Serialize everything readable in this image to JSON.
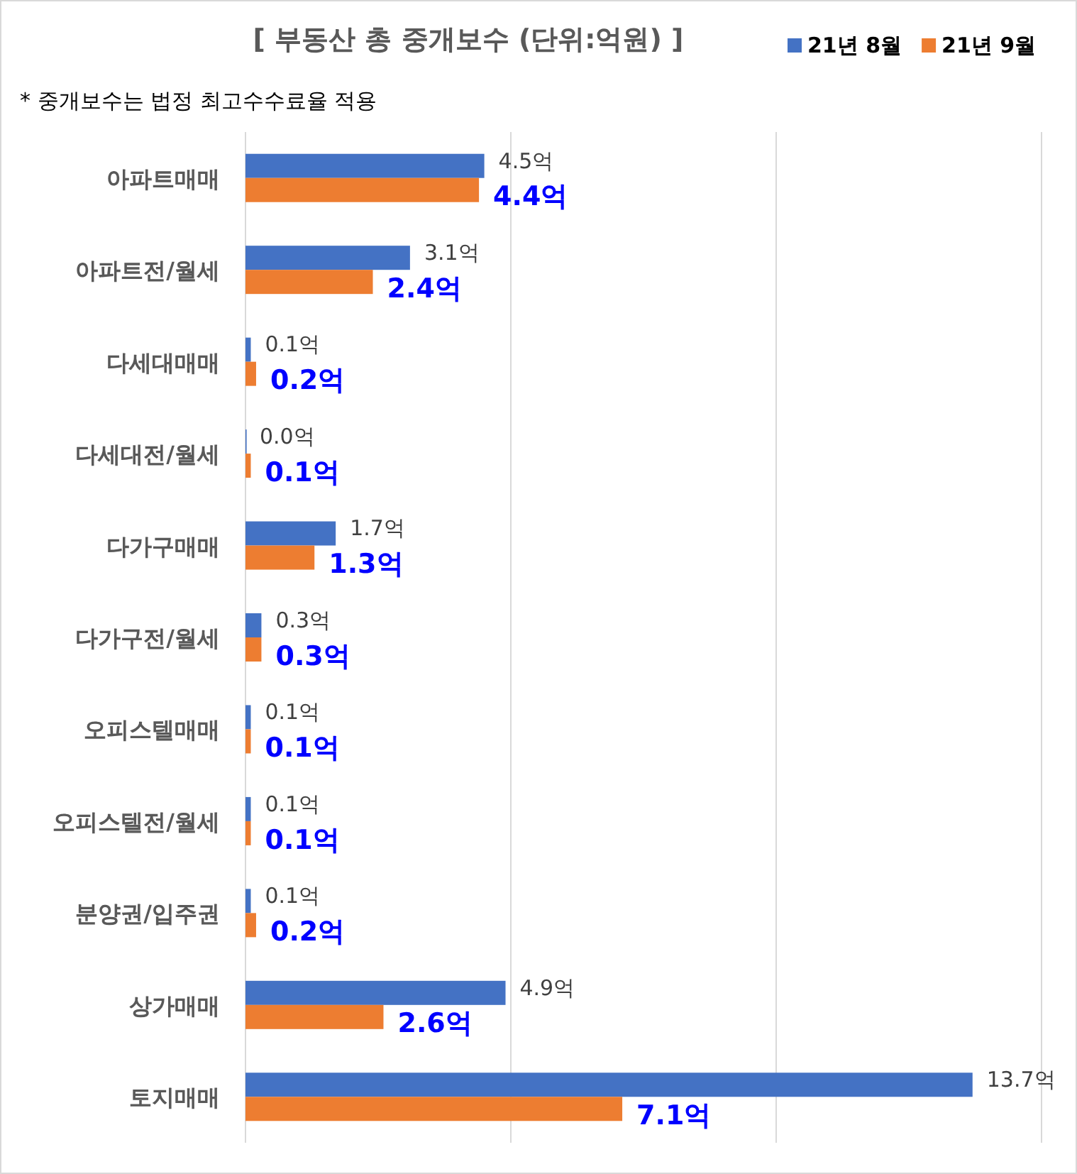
{
  "chart_data": {
    "type": "bar",
    "orientation": "horizontal",
    "title": "[ 부동산 총 중개보수 (단위:억원) ]",
    "annotations": [
      "* 중개보수는 법정 최고수수료율 적용"
    ],
    "categories": [
      "아파트매매",
      "아파트전/월세",
      "다세대매매",
      "다세대전/월세",
      "다가구매매",
      "다가구전/월세",
      "오피스텔매매",
      "오피스텔전/월세",
      "분양권/입주권",
      "상가매매",
      "토지매매"
    ],
    "series": [
      {
        "name": "21년 8월",
        "color": "#4472c4",
        "values": [
          4.5,
          3.1,
          0.1,
          0.0,
          1.7,
          0.3,
          0.1,
          0.1,
          0.1,
          4.9,
          13.7
        ],
        "value_labels": [
          "4.5억",
          "3.1억",
          "0.1억",
          "0.0억",
          "1.7억",
          "0.3억",
          "0.1억",
          "0.1억",
          "0.1억",
          "4.9억",
          "13.7억"
        ]
      },
      {
        "name": "21년 9월",
        "color": "#ed7d31",
        "values": [
          4.4,
          2.4,
          0.2,
          0.1,
          1.3,
          0.3,
          0.1,
          0.1,
          0.2,
          2.6,
          7.1
        ],
        "value_labels": [
          "4.4억",
          "2.4억",
          "0.2억",
          "0.1억",
          "1.3억",
          "0.3억",
          "0.1억",
          "0.1억",
          "0.2억",
          "2.6억",
          "7.1억"
        ]
      }
    ],
    "xlim": [
      0,
      15
    ],
    "xticks": [
      {
        "value": 0,
        "label": null
      },
      {
        "value": 5,
        "label": null
      },
      {
        "value": 10,
        "label": null
      },
      {
        "value": 15,
        "label": null
      }
    ],
    "grid": "x",
    "legend": "top right",
    "tick_labels": "y"
  }
}
